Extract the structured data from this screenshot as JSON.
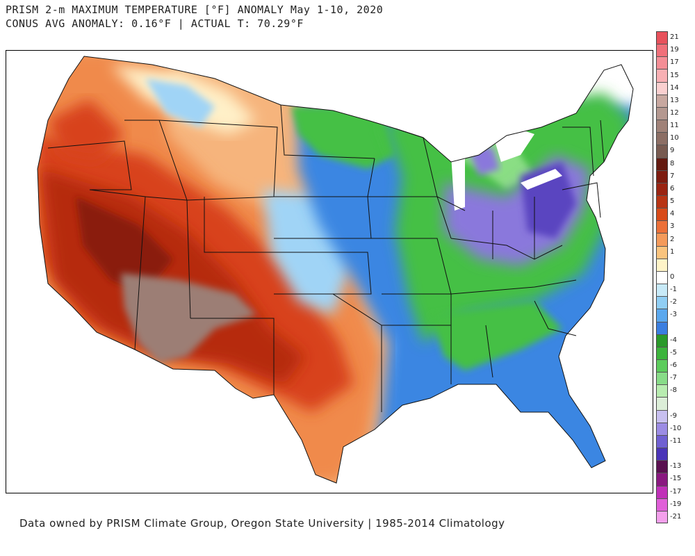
{
  "title": {
    "line1": "PRISM 2-m MAXIMUM TEMPERATURE [°F] ANOMALY May 1-10, 2020",
    "line2": "CONUS AVG ANOMALY: 0.16°F | ACTUAL T: 70.29°F"
  },
  "footer": "Data owned by PRISM Climate Group, Oregon State University | 1985-2014 Climatology",
  "legend": {
    "items": [
      {
        "label": "21",
        "color": "#e8525c"
      },
      {
        "label": "19",
        "color": "#f0707a"
      },
      {
        "label": "17",
        "color": "#f48e96"
      },
      {
        "label": "15",
        "color": "#f8b0b4"
      },
      {
        "label": "14",
        "color": "#fad0d0"
      },
      {
        "label": "13",
        "color": "#c8a8a0"
      },
      {
        "label": "12",
        "color": "#b49890"
      },
      {
        "label": "11",
        "color": "#a08278"
      },
      {
        "label": "10",
        "color": "#8c6e64"
      },
      {
        "label": "9",
        "color": "#785a50"
      },
      {
        "label": "8",
        "color": "#641a10"
      },
      {
        "label": "7",
        "color": "#7e1c10"
      },
      {
        "label": "6",
        "color": "#9a2412"
      },
      {
        "label": "5",
        "color": "#b83414"
      },
      {
        "label": "4",
        "color": "#d84a18"
      },
      {
        "label": "3",
        "color": "#ec7038"
      },
      {
        "label": "2",
        "color": "#f49a5a"
      },
      {
        "label": "1",
        "color": "#fac47e"
      },
      {
        "label": "",
        "color": "#fff4c8"
      },
      {
        "label": "0",
        "color": "#ffffff"
      },
      {
        "label": "-1",
        "color": "#c8eaf8"
      },
      {
        "label": "-2",
        "color": "#90cef4"
      },
      {
        "label": "-3",
        "color": "#5aa8ee"
      },
      {
        "label": "",
        "color": "#3a7ee0"
      },
      {
        "label": "-4",
        "color": "#2a9a2a"
      },
      {
        "label": "-5",
        "color": "#3cb43c"
      },
      {
        "label": "-6",
        "color": "#5ccc5c"
      },
      {
        "label": "-7",
        "color": "#88dc88"
      },
      {
        "label": "-8",
        "color": "#b8ecb0"
      },
      {
        "label": "",
        "color": "#dceed8"
      },
      {
        "label": "-9",
        "color": "#c8c0f0"
      },
      {
        "label": "-10",
        "color": "#9c8ce4"
      },
      {
        "label": "-11",
        "color": "#7060d2"
      },
      {
        "label": "",
        "color": "#4a34b8"
      },
      {
        "label": "-13",
        "color": "#5a1050"
      },
      {
        "label": "-15",
        "color": "#8a1880"
      },
      {
        "label": "-17",
        "color": "#c030b8"
      },
      {
        "label": "-19",
        "color": "#e060d8"
      },
      {
        "label": "-21",
        "color": "#f4a0ec"
      }
    ]
  },
  "map": {
    "colors": {
      "red_dark": "#8a1a0e",
      "red": "#b62a10",
      "red_orange": "#d8431a",
      "orange": "#f08a4c",
      "peach": "#f6b47c",
      "cream": "#fff0c8",
      "brown": "#9c7e74",
      "light_blue": "#a0d4f6",
      "blue": "#3a86e2",
      "green": "#44c044",
      "light_green": "#8ade84",
      "purple": "#8a78dc",
      "dark_purple": "#5a44c0",
      "lake": "#ffffff"
    }
  }
}
